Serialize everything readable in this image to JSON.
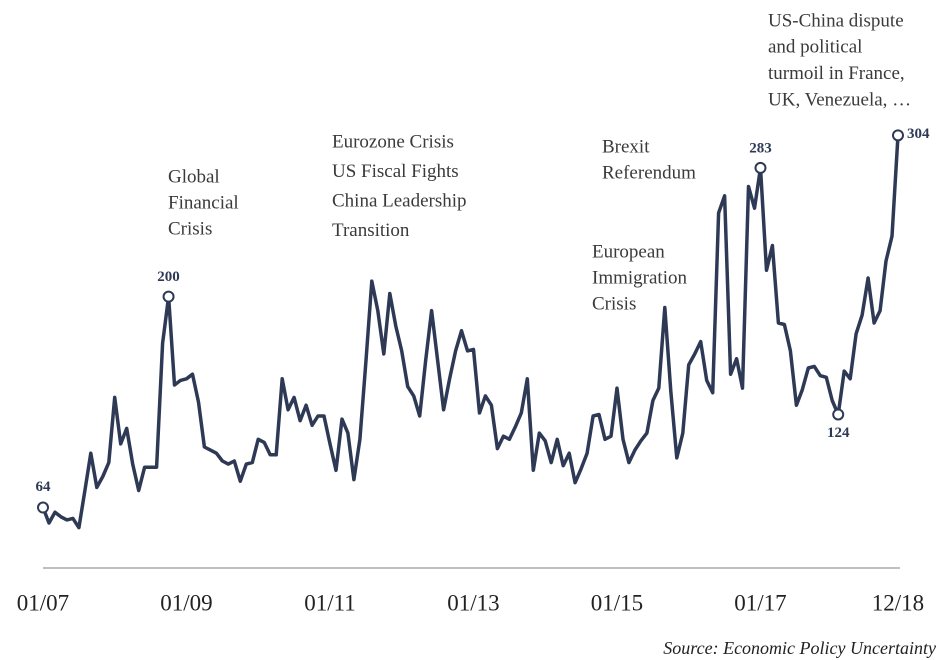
{
  "chart_data": {
    "type": "line",
    "categories": [
      "01/07",
      "02/07",
      "03/07",
      "04/07",
      "05/07",
      "06/07",
      "07/07",
      "08/07",
      "09/07",
      "10/07",
      "11/07",
      "12/07",
      "01/08",
      "02/08",
      "03/08",
      "04/08",
      "05/08",
      "06/08",
      "07/08",
      "08/08",
      "09/08",
      "10/08",
      "11/08",
      "12/08",
      "01/09",
      "02/09",
      "03/09",
      "04/09",
      "05/09",
      "06/09",
      "07/09",
      "08/09",
      "09/09",
      "10/09",
      "11/09",
      "12/09",
      "01/10",
      "02/10",
      "03/10",
      "04/10",
      "05/10",
      "06/10",
      "07/10",
      "08/10",
      "09/10",
      "10/10",
      "11/10",
      "12/10",
      "01/11",
      "02/11",
      "03/11",
      "04/11",
      "05/11",
      "06/11",
      "07/11",
      "08/11",
      "09/11",
      "10/11",
      "11/11",
      "12/11",
      "01/12",
      "02/12",
      "03/12",
      "04/12",
      "05/12",
      "06/12",
      "07/12",
      "08/12",
      "09/12",
      "10/12",
      "11/12",
      "12/12",
      "01/13",
      "02/13",
      "03/13",
      "04/13",
      "05/13",
      "06/13",
      "07/13",
      "08/13",
      "09/13",
      "10/13",
      "11/13",
      "12/13",
      "01/14",
      "02/14",
      "03/14",
      "04/14",
      "05/14",
      "06/14",
      "07/14",
      "08/14",
      "09/14",
      "10/14",
      "11/14",
      "12/14",
      "01/15",
      "02/15",
      "03/15",
      "04/15",
      "05/15",
      "06/15",
      "07/15",
      "08/15",
      "09/15",
      "10/15",
      "11/15",
      "12/15",
      "01/16",
      "02/16",
      "03/16",
      "04/16",
      "05/16",
      "06/16",
      "07/16",
      "08/16",
      "09/16",
      "10/16",
      "11/16",
      "12/16",
      "01/17",
      "02/17",
      "03/17",
      "04/17",
      "05/17",
      "06/17",
      "07/17",
      "08/17",
      "09/17",
      "10/17",
      "11/17",
      "12/17",
      "01/18",
      "02/18",
      "03/18",
      "04/18",
      "05/18",
      "06/18",
      "07/18",
      "08/18",
      "09/18",
      "10/18",
      "11/18",
      "12/18"
    ],
    "values": [
      64,
      54,
      61,
      58,
      56,
      57,
      51,
      75,
      99,
      77,
      84,
      93,
      135,
      105,
      115,
      92,
      75,
      90,
      90,
      90,
      170,
      200,
      143,
      146,
      147,
      150,
      132,
      103,
      101,
      99,
      94,
      92,
      94,
      81,
      92,
      93,
      108,
      106,
      98,
      98,
      147,
      127,
      135,
      120,
      130,
      117,
      123,
      123,
      105,
      88,
      121,
      112,
      82,
      108,
      158,
      210,
      191,
      163,
      202,
      181,
      165,
      142,
      136,
      123,
      159,
      191,
      159,
      127,
      147,
      165,
      178,
      165,
      166,
      125,
      136,
      130,
      102,
      110,
      108,
      116,
      125,
      147,
      88,
      112,
      107,
      93,
      108,
      91,
      99,
      80,
      89,
      99,
      123,
      124,
      108,
      110,
      141,
      108,
      93,
      101,
      107,
      112,
      133,
      141,
      193,
      139,
      96,
      112,
      156,
      163,
      171,
      146,
      138,
      254,
      265,
      150,
      160,
      141,
      271,
      257,
      283,
      217,
      233,
      183,
      182,
      165,
      130,
      140,
      154,
      155,
      149,
      148,
      133,
      124,
      152,
      147,
      176,
      188,
      212,
      183,
      191,
      223,
      239,
      304
    ],
    "value_labels": [
      "64",
      null,
      null,
      null,
      null,
      null,
      null,
      null,
      null,
      null,
      null,
      null,
      null,
      null,
      null,
      null,
      null,
      null,
      null,
      null,
      null,
      "200",
      null,
      null,
      null,
      null,
      null,
      null,
      null,
      null,
      null,
      null,
      null,
      null,
      null,
      null,
      null,
      null,
      null,
      null,
      null,
      null,
      null,
      null,
      null,
      null,
      null,
      null,
      null,
      null,
      null,
      null,
      null,
      null,
      null,
      null,
      null,
      null,
      null,
      null,
      null,
      null,
      null,
      null,
      null,
      null,
      null,
      null,
      null,
      null,
      null,
      null,
      null,
      null,
      null,
      null,
      null,
      null,
      null,
      null,
      null,
      null,
      null,
      null,
      null,
      null,
      null,
      null,
      null,
      null,
      null,
      null,
      null,
      null,
      null,
      null,
      null,
      null,
      null,
      null,
      null,
      null,
      null,
      null,
      null,
      null,
      null,
      null,
      null,
      null,
      null,
      null,
      null,
      null,
      null,
      null,
      null,
      null,
      null,
      null,
      "283",
      null,
      null,
      null,
      null,
      null,
      null,
      null,
      null,
      null,
      null,
      null,
      null,
      "124",
      null,
      null,
      null,
      null,
      null,
      null,
      null,
      null,
      null,
      "304"
    ],
    "color": "#2e3a55",
    "ylim": [
      25,
      390
    ],
    "xticks": [
      "01/07",
      "01/09",
      "01/11",
      "01/13",
      "01/15",
      "01/17",
      "12/18"
    ],
    "annotations": [
      [
        "Global",
        "Financial",
        "Crisis"
      ],
      [
        "Eurozone Crisis",
        "US Fiscal Fights",
        "China Leadership",
        "Transition"
      ],
      [
        "European",
        "Immigration",
        "Crisis"
      ],
      [
        "Brexit",
        "Referendum"
      ],
      [
        "US-China dispute",
        "and political",
        "turmoil in France,",
        "UK,  Venezuela, …"
      ]
    ],
    "source": "Source: Economic Policy Uncertainty"
  }
}
